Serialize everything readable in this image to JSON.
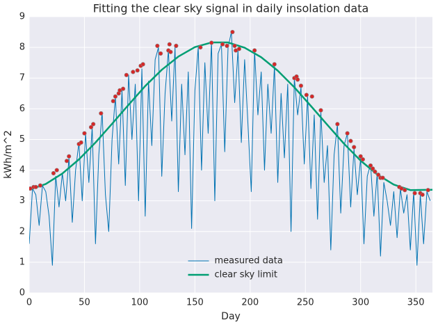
{
  "chart_data": {
    "type": "line",
    "title": "Fitting the clear sky signal in daily insolation data",
    "xlabel": "Day",
    "ylabel": "kWh/m^2",
    "xlim": [
      0,
      365
    ],
    "ylim": [
      0,
      9
    ],
    "xticks": [
      0,
      50,
      100,
      150,
      200,
      250,
      300,
      350
    ],
    "yticks": [
      0,
      1,
      2,
      3,
      4,
      5,
      6,
      7,
      8,
      9
    ],
    "grid": true,
    "legend": "lower center",
    "series": [
      {
        "name": "measured data",
        "color": "#0072b2",
        "type": "line",
        "x": [
          0,
          3,
          6,
          9,
          12,
          15,
          18,
          21,
          24,
          27,
          30,
          33,
          36,
          39,
          42,
          45,
          48,
          51,
          54,
          57,
          60,
          63,
          66,
          69,
          72,
          75,
          78,
          81,
          84,
          87,
          90,
          93,
          96,
          99,
          102,
          105,
          108,
          111,
          114,
          117,
          120,
          123,
          126,
          129,
          132,
          135,
          138,
          141,
          144,
          147,
          150,
          153,
          156,
          159,
          162,
          165,
          168,
          171,
          174,
          177,
          180,
          183,
          186,
          189,
          192,
          195,
          198,
          201,
          204,
          207,
          210,
          213,
          216,
          219,
          222,
          225,
          228,
          231,
          234,
          237,
          240,
          243,
          246,
          249,
          252,
          255,
          258,
          261,
          264,
          267,
          270,
          273,
          276,
          279,
          282,
          285,
          288,
          291,
          294,
          297,
          300,
          303,
          306,
          309,
          312,
          315,
          318,
          321,
          324,
          327,
          330,
          333,
          336,
          339,
          342,
          345,
          348,
          351,
          354,
          357,
          360,
          363
        ],
        "values": [
          1.6,
          3.4,
          3.2,
          2.2,
          3.5,
          3.3,
          2.5,
          0.9,
          3.8,
          2.8,
          3.9,
          3.0,
          4.4,
          2.3,
          4.0,
          4.9,
          3.0,
          5.2,
          3.6,
          5.4,
          1.6,
          4.5,
          5.9,
          3.2,
          2.0,
          5.0,
          6.4,
          4.2,
          6.6,
          3.5,
          7.1,
          5.0,
          6.8,
          3.0,
          7.3,
          2.5,
          6.9,
          4.8,
          7.6,
          8.0,
          3.8,
          6.5,
          7.9,
          5.6,
          8.0,
          3.3,
          6.8,
          4.5,
          7.2,
          2.1,
          6.6,
          8.0,
          4.0,
          7.5,
          5.2,
          8.2,
          3.0,
          7.8,
          8.1,
          4.6,
          8.0,
          8.5,
          6.2,
          7.9,
          4.9,
          7.6,
          5.5,
          3.3,
          7.9,
          5.8,
          7.2,
          4.0,
          6.8,
          5.2,
          7.4,
          3.6,
          6.5,
          4.4,
          6.8,
          2.0,
          7.0,
          5.8,
          6.7,
          4.2,
          6.4,
          3.4,
          5.8,
          2.4,
          5.9,
          3.6,
          4.8,
          1.4,
          4.5,
          5.5,
          2.6,
          4.8,
          5.2,
          2.8,
          4.7,
          3.2,
          4.4,
          1.6,
          3.8,
          4.2,
          2.5,
          3.9,
          1.2,
          3.6,
          3.0,
          2.2,
          3.3,
          1.8,
          3.4,
          2.6,
          3.2,
          1.4,
          3.3,
          0.9,
          3.2,
          1.6,
          3.3,
          3.0
        ]
      },
      {
        "name": "clear sky limit",
        "color": "#009e73",
        "type": "line",
        "x": [
          0,
          15,
          30,
          45,
          60,
          75,
          90,
          105,
          120,
          135,
          150,
          165,
          180,
          195,
          210,
          225,
          240,
          255,
          270,
          285,
          300,
          315,
          330,
          345,
          365
        ],
        "values": [
          3.36,
          3.55,
          3.89,
          4.35,
          4.9,
          5.51,
          6.13,
          6.74,
          7.27,
          7.7,
          8.01,
          8.16,
          8.16,
          7.99,
          7.68,
          7.24,
          6.7,
          6.09,
          5.47,
          4.86,
          4.31,
          3.86,
          3.53,
          3.35,
          3.36
        ]
      },
      {
        "color": "#d62728",
        "type": "scatter",
        "x": [
          1,
          4,
          6,
          10,
          22,
          25,
          34,
          36,
          45,
          47,
          50,
          56,
          58,
          65,
          76,
          78,
          81,
          82,
          85,
          88,
          94,
          98,
          101,
          103,
          116,
          119,
          126,
          127,
          128,
          133,
          155,
          165,
          175,
          179,
          184,
          186,
          187,
          190,
          204,
          222,
          240,
          242,
          243,
          246,
          251,
          256,
          264,
          279,
          288,
          291,
          294,
          300,
          302,
          309,
          311,
          313,
          316,
          318,
          320,
          335,
          337,
          340,
          349,
          354,
          356,
          361
        ],
        "values": [
          3.4,
          3.45,
          3.45,
          3.5,
          3.9,
          4.0,
          4.3,
          4.45,
          4.85,
          4.9,
          5.2,
          5.4,
          5.5,
          5.85,
          6.25,
          6.4,
          6.5,
          6.6,
          6.65,
          7.1,
          7.2,
          7.25,
          7.4,
          7.45,
          8.05,
          7.8,
          7.9,
          8.1,
          7.85,
          8.05,
          8.0,
          8.15,
          8.1,
          8.05,
          8.5,
          8.05,
          7.9,
          7.95,
          7.9,
          7.45,
          7.0,
          7.05,
          6.95,
          6.75,
          6.45,
          6.4,
          5.95,
          5.5,
          5.2,
          4.95,
          4.75,
          4.45,
          4.35,
          4.15,
          4.05,
          3.95,
          3.85,
          3.75,
          3.75,
          3.45,
          3.4,
          3.35,
          3.25,
          3.25,
          3.2,
          3.35
        ]
      }
    ]
  }
}
